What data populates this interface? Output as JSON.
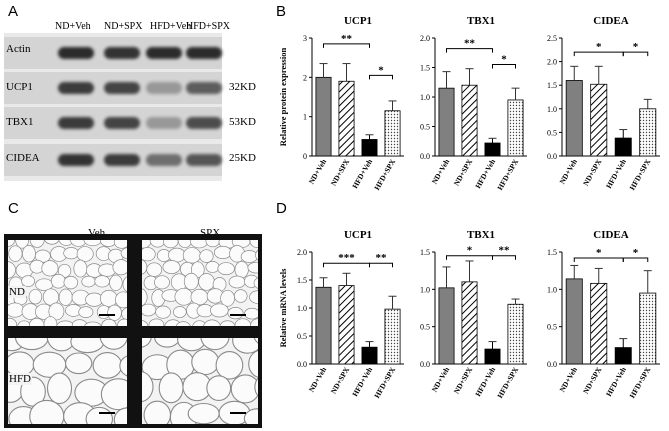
{
  "panels": {
    "a": "A",
    "b": "B",
    "c": "C",
    "d": "D"
  },
  "blot": {
    "lanes": [
      "ND+Veh",
      "ND+SPX",
      "HFD+Veh",
      "HFD+SPX"
    ],
    "rows": [
      {
        "label": "Actin",
        "kd": "",
        "intensity": [
          1.0,
          0.95,
          1.0,
          1.0
        ]
      },
      {
        "label": "UCP1",
        "kd": "32KD",
        "intensity": [
          0.9,
          0.85,
          0.35,
          0.7
        ]
      },
      {
        "label": "TBX1",
        "kd": "53KD",
        "intensity": [
          0.9,
          0.85,
          0.35,
          0.8
        ]
      },
      {
        "label": "CIDEA",
        "kd": "25KD",
        "intensity": [
          0.95,
          0.9,
          0.6,
          0.75
        ]
      }
    ]
  },
  "histology": {
    "col_labels": [
      "Veh",
      "SPX"
    ],
    "row_labels": [
      "ND",
      "HFD"
    ]
  },
  "styles": {
    "ND+Veh": {
      "fill": "#808080",
      "pattern": "solid"
    },
    "ND+SPX": {
      "fill": "#ffffff",
      "pattern": "diag"
    },
    "HFD+Veh": {
      "fill": "#000000",
      "pattern": "solid"
    },
    "HFD+SPX": {
      "fill": "#ffffff",
      "pattern": "dots"
    }
  },
  "chart_data": [
    {
      "panel": "B",
      "type": "bar",
      "title": "UCP1",
      "ylabel": "Relative protein expression",
      "categories": [
        "ND+Veh",
        "ND+SPX",
        "HFD+Veh",
        "HFD+SPX"
      ],
      "values": [
        2.0,
        1.9,
        0.42,
        1.15
      ],
      "errors": [
        0.35,
        0.45,
        0.12,
        0.25
      ],
      "ylim": [
        0,
        3
      ],
      "yticks": [
        0,
        1,
        2,
        3
      ],
      "sig": [
        {
          "from": 0,
          "to": 2,
          "label": "**",
          "y": 2.85
        },
        {
          "from": 2,
          "to": 3,
          "label": "*",
          "y": 2.05
        }
      ]
    },
    {
      "panel": "B",
      "type": "bar",
      "title": "TBX1",
      "ylabel": "",
      "categories": [
        "ND+Veh",
        "ND+SPX",
        "HFD+Veh",
        "HFD+SPX"
      ],
      "values": [
        1.15,
        1.2,
        0.22,
        0.95
      ],
      "errors": [
        0.28,
        0.28,
        0.08,
        0.2
      ],
      "ylim": [
        0,
        2.0
      ],
      "yticks": [
        0.0,
        0.5,
        1.0,
        1.5,
        2.0
      ],
      "sig": [
        {
          "from": 0,
          "to": 2,
          "label": "**",
          "y": 1.82
        },
        {
          "from": 2,
          "to": 3,
          "label": "*",
          "y": 1.55
        }
      ]
    },
    {
      "panel": "B",
      "type": "bar",
      "title": "CIDEA",
      "ylabel": "",
      "categories": [
        "ND+Veh",
        "ND+SPX",
        "HFD+Veh",
        "HFD+SPX"
      ],
      "values": [
        1.6,
        1.52,
        0.38,
        1.0
      ],
      "errors": [
        0.3,
        0.38,
        0.18,
        0.2
      ],
      "ylim": [
        0,
        2.5
      ],
      "yticks": [
        0.0,
        0.5,
        1.0,
        1.5,
        2.0,
        2.5
      ],
      "sig": [
        {
          "from": 0,
          "to": 2,
          "label": "*",
          "y": 2.2
        },
        {
          "from": 2,
          "to": 3,
          "label": "*",
          "y": 2.2
        }
      ]
    },
    {
      "panel": "D",
      "type": "bar",
      "title": "UCP1",
      "ylabel": "Relative mRNA levels",
      "categories": [
        "ND+Veh",
        "ND+SPX",
        "HFD+Veh",
        "HFD+SPX"
      ],
      "values": [
        1.37,
        1.4,
        0.3,
        0.98
      ],
      "errors": [
        0.17,
        0.22,
        0.1,
        0.23
      ],
      "ylim": [
        0,
        2.0
      ],
      "yticks": [
        0.0,
        0.5,
        1.0,
        1.5,
        2.0
      ],
      "sig": [
        {
          "from": 0,
          "to": 2,
          "label": "***",
          "y": 1.8
        },
        {
          "from": 2,
          "to": 3,
          "label": "**",
          "y": 1.8
        }
      ]
    },
    {
      "panel": "D",
      "type": "bar",
      "title": "TBX1",
      "ylabel": "",
      "categories": [
        "ND+Veh",
        "ND+SPX",
        "HFD+Veh",
        "HFD+SPX"
      ],
      "values": [
        1.02,
        1.1,
        0.2,
        0.8
      ],
      "errors": [
        0.28,
        0.28,
        0.1,
        0.07
      ],
      "ylim": [
        0,
        1.5
      ],
      "yticks": [
        0.0,
        0.5,
        1.0,
        1.5
      ],
      "sig": [
        {
          "from": 0,
          "to": 2,
          "label": "*",
          "y": 1.45
        },
        {
          "from": 2,
          "to": 3,
          "label": "**",
          "y": 1.45
        }
      ]
    },
    {
      "panel": "D",
      "type": "bar",
      "title": "CIDEA",
      "ylabel": "",
      "categories": [
        "ND+Veh",
        "ND+SPX",
        "HFD+Veh",
        "HFD+SPX"
      ],
      "values": [
        1.14,
        1.08,
        0.22,
        0.95
      ],
      "errors": [
        0.18,
        0.2,
        0.12,
        0.3
      ],
      "ylim": [
        0,
        1.5
      ],
      "yticks": [
        0.0,
        0.5,
        1.0,
        1.5
      ],
      "sig": [
        {
          "from": 0,
          "to": 2,
          "label": "*",
          "y": 1.42
        },
        {
          "from": 2,
          "to": 3,
          "label": "*",
          "y": 1.42
        }
      ]
    }
  ]
}
